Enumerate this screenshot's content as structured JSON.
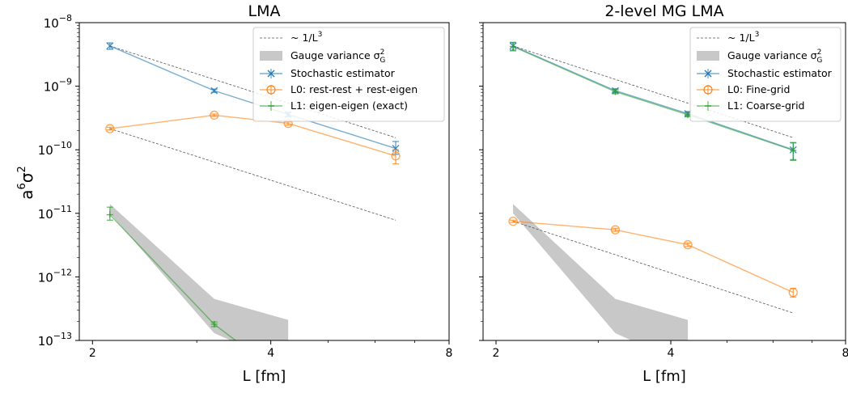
{
  "figure": {
    "ylabel": "a",
    "ylabel_sup1": "6",
    "ylabel_sigma": "σ",
    "ylabel_sup2": "2"
  },
  "chart_data": [
    {
      "type": "line",
      "title": "LMA",
      "xlabel": "L [fm]",
      "xscale": "log",
      "yscale": "log",
      "xlim": [
        1.9,
        8
      ],
      "ylim": [
        1e-13,
        1e-08
      ],
      "xticks": [
        2,
        4,
        8
      ],
      "yticks": [
        {
          "value": 1e-08,
          "base": "10",
          "exp": "−8"
        },
        {
          "value": 1e-09,
          "base": "10",
          "exp": "−9"
        },
        {
          "value": 1e-10,
          "base": "10",
          "exp": "−10"
        },
        {
          "value": 1e-11,
          "base": "10",
          "exp": "−11"
        },
        {
          "value": 1e-12,
          "base": "10",
          "exp": "−12"
        },
        {
          "value": 1e-13,
          "base": "10",
          "exp": "−13"
        }
      ],
      "legend_position": "top-right",
      "reference_lines": [
        {
          "label_prefix": "~ 1/L",
          "label_sup": "3",
          "x": [
            2.14,
            6.5
          ],
          "y": [
            4.3e-09,
            1.55e-10
          ]
        },
        {
          "label_prefix": "~ 1/L",
          "label_sup": "3",
          "x": [
            2.14,
            6.5
          ],
          "y": [
            2.15e-10,
            7.8e-12
          ]
        }
      ],
      "gauge_band": {
        "label_prefix": "Gauge variance σ",
        "label_sup": "2",
        "label_sub": "G",
        "x": [
          2.14,
          3.21,
          4.28
        ],
        "upper": [
          1.4e-11,
          4.5e-13,
          2.1e-13
        ],
        "lower": [
          1e-11,
          1.3e-13,
          4e-14
        ]
      },
      "series": [
        {
          "name": "Stochastic estimator",
          "color": "#1f77b4",
          "marker": "x",
          "x": [
            2.14,
            3.21,
            4.28,
            6.5
          ],
          "y": [
            4.3e-09,
            8.5e-10,
            3.6e-10,
            1.05e-10
          ],
          "err_lo": [
            3.8e-09,
            8e-10,
            3.3e-10,
            8.5e-11
          ],
          "err_hi": [
            4.8e-09,
            9e-10,
            3.9e-10,
            1.35e-10
          ]
        },
        {
          "name": "L0: rest-rest + rest-eigen",
          "color": "#ff7f0e",
          "marker": "o",
          "x": [
            2.14,
            3.21,
            4.28,
            6.5
          ],
          "y": [
            2.15e-10,
            3.5e-10,
            2.6e-10,
            8e-11
          ],
          "err_lo": [
            2.05e-10,
            3.35e-10,
            2.45e-10,
            6e-11
          ],
          "err_hi": [
            2.25e-10,
            3.65e-10,
            2.75e-10,
            1e-10
          ]
        },
        {
          "name": "L1: eigen-eigen (exact)",
          "color": "#2ca02c",
          "marker": "+",
          "x": [
            2.14,
            3.21,
            3.6
          ],
          "y": [
            9.5e-12,
            1.8e-13,
            8e-14
          ],
          "err_lo": [
            7.8e-12,
            1.65e-13,
            null
          ],
          "err_hi": [
            1.25e-11,
            1.95e-13,
            null
          ]
        }
      ]
    },
    {
      "type": "line",
      "title": "2-level MG LMA",
      "xlabel": "L [fm]",
      "xscale": "log",
      "yscale": "log",
      "xlim": [
        1.9,
        8
      ],
      "ylim": [
        1e-13,
        1e-08
      ],
      "xticks": [
        2,
        4,
        8
      ],
      "legend_position": "top-right",
      "reference_lines": [
        {
          "label_prefix": "~ 1/L",
          "label_sup": "3",
          "x": [
            2.14,
            6.5
          ],
          "y": [
            4.3e-09,
            1.55e-10
          ]
        },
        {
          "label_prefix": "~ 1/L",
          "label_sup": "3",
          "x": [
            2.14,
            6.5
          ],
          "y": [
            7.5e-12,
            2.7e-13
          ]
        }
      ],
      "gauge_band": {
        "label_prefix": "Gauge variance σ",
        "label_sup": "2",
        "label_sub": "G",
        "x": [
          2.14,
          3.21,
          4.28
        ],
        "upper": [
          1.4e-11,
          4.5e-13,
          2.1e-13
        ],
        "lower": [
          1e-11,
          1.3e-13,
          4e-14
        ]
      },
      "series": [
        {
          "name": "Stochastic estimator",
          "color": "#1f77b4",
          "marker": "x",
          "x": [
            2.14,
            3.21,
            4.28,
            6.5
          ],
          "y": [
            4.3e-09,
            8.5e-10,
            3.7e-10,
            1e-10
          ],
          "err_lo": [
            3.7e-09,
            7.9e-10,
            3.4e-10,
            7e-11
          ],
          "err_hi": [
            4.9e-09,
            9.1e-10,
            4e-10,
            1.3e-10
          ]
        },
        {
          "name": "L0: Fine-grid",
          "color": "#ff7f0e",
          "marker": "o",
          "x": [
            2.14,
            3.21,
            4.28,
            6.5
          ],
          "y": [
            7.5e-12,
            5.5e-12,
            3.2e-12,
            5.7e-13
          ],
          "err_lo": [
            7.2e-12,
            5.2e-12,
            3e-12,
            4.8e-13
          ],
          "err_hi": [
            7.8e-12,
            5.8e-12,
            3.4e-12,
            6.6e-13
          ]
        },
        {
          "name": "L1: Coarse-grid",
          "color": "#2ca02c",
          "marker": "+",
          "x": [
            2.14,
            3.21,
            4.28,
            6.5
          ],
          "y": [
            4.2e-09,
            8.2e-10,
            3.55e-10,
            9.8e-11
          ],
          "err_lo": [
            3.6e-09,
            7.6e-10,
            3.3e-10,
            6.8e-11
          ],
          "err_hi": [
            4.8e-09,
            8.8e-10,
            3.8e-10,
            1.28e-10
          ]
        }
      ]
    }
  ]
}
